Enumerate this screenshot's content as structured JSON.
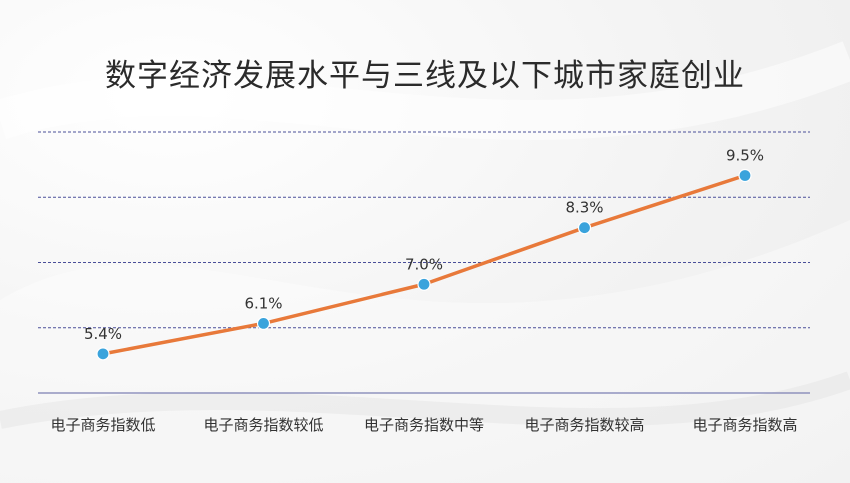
{
  "title": "数字经济发展水平与三线及以下城市家庭创业",
  "chart_data": {
    "type": "line",
    "title": "数字经济发展水平与三线及以下城市家庭创业",
    "categories": [
      "电子商务指数低",
      "电子商务指数较低",
      "电子商务指数中等",
      "电子商务指数较高",
      "电子商务指数高"
    ],
    "series": [
      {
        "values": [
          5.4,
          6.1,
          7.0,
          8.3,
          9.5
        ],
        "labels": [
          "5.4%",
          "6.1%",
          "7.0%",
          "8.3%",
          "9.5%"
        ]
      }
    ],
    "xlabel": "",
    "ylabel": "",
    "ylim": [
      4.5,
      10.5
    ],
    "grid": true,
    "line_color": "#e8793a",
    "marker_color": "#3aa3dc",
    "grid_color": "#4a4f99"
  }
}
